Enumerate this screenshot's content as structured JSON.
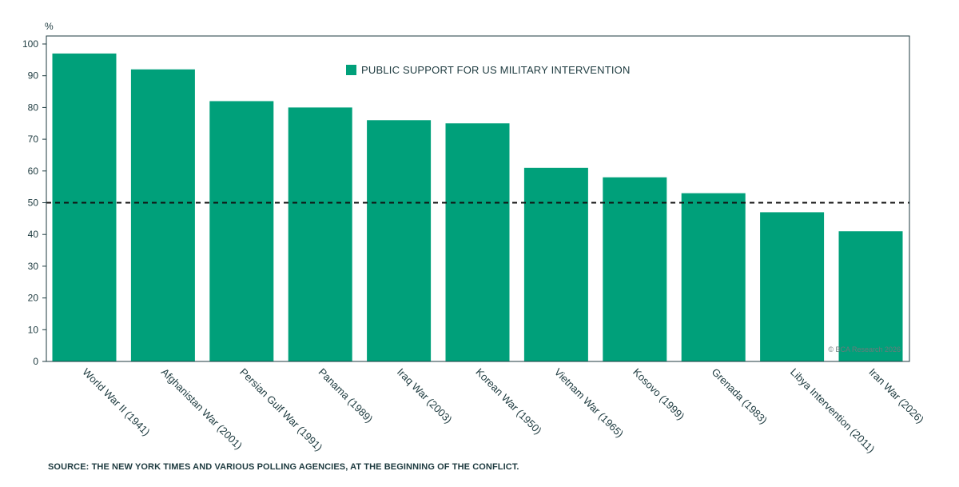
{
  "chart_data": {
    "type": "bar",
    "y_unit": "%",
    "ylim": [
      0,
      100
    ],
    "yticks": [
      0,
      10,
      20,
      30,
      40,
      50,
      60,
      70,
      80,
      90,
      100
    ],
    "categories": [
      "World War II (1941)",
      "Afghanistan War (2001)",
      "Persian Gulf War (1991)",
      "Panama (1989)",
      "Iraq War (2003)",
      "Korean War (1950)",
      "Vietnam War (1965)",
      "Kosovo (1999)",
      "Grenada (1983)",
      "Libya Intervention (2011)",
      "Iran War (2026)"
    ],
    "series": [
      {
        "name": "PUBLIC SUPPORT FOR US MILITARY INTERVENTION",
        "values": [
          97,
          92,
          82,
          80,
          76,
          75,
          61,
          58,
          53,
          47,
          41
        ],
        "color": "#00a07a"
      }
    ],
    "reference_line": {
      "y": 50,
      "style": "dashed",
      "color": "#111111"
    },
    "legend_placement": "top-center",
    "grid": false
  },
  "source": "SOURCE: THE NEW YORK TIMES AND VARIOUS POLLING AGENCIES, AT THE BEGINNING OF THE CONFLICT.",
  "watermark": "© BCA Research 2026"
}
